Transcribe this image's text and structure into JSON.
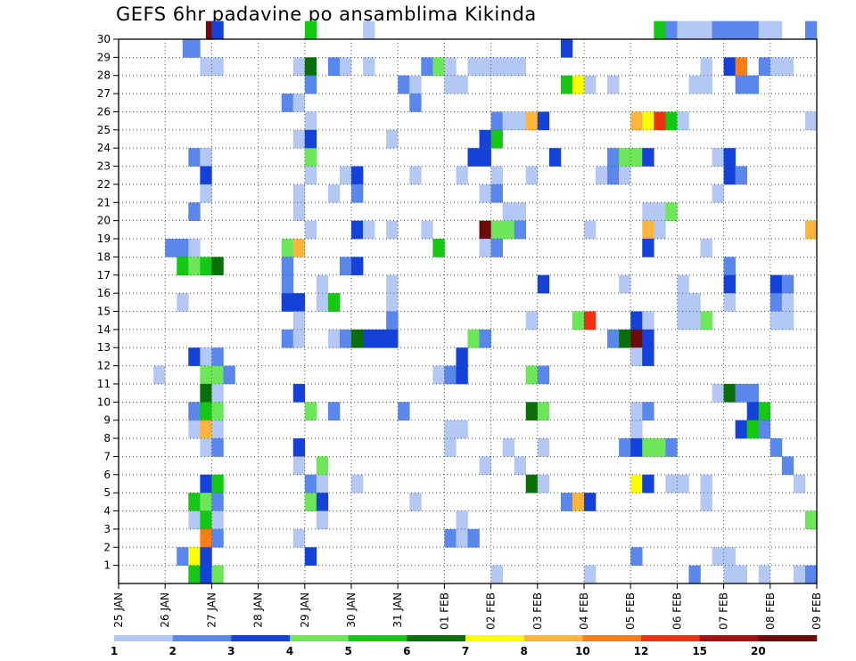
{
  "chart_data": {
    "type": "heatmap",
    "title": "GEFS 6hr padavine po ansamblima Kikinda",
    "xlabel": "",
    "ylabel": "",
    "x_ticks": [
      "25 JAN",
      "26 JAN",
      "27 JAN",
      "28 JAN",
      "29 JAN",
      "30 JAN",
      "31 JAN",
      "01 FEB",
      "02 FEB",
      "03 FEB",
      "04 FEB",
      "05 FEB",
      "06 FEB",
      "07 FEB",
      "08 FEB",
      "09 FEB"
    ],
    "x_range_days": [
      0,
      15
    ],
    "y_ticks": [
      1,
      2,
      3,
      4,
      5,
      6,
      7,
      8,
      9,
      10,
      11,
      12,
      13,
      14,
      15,
      16,
      17,
      18,
      19,
      20,
      21,
      22,
      23,
      24,
      25,
      26,
      27,
      28,
      29,
      30
    ],
    "y_range": [
      0,
      30
    ],
    "grid": true,
    "colorbar": {
      "labels": [
        "1",
        "2",
        "3",
        "4",
        "5",
        "6",
        "7",
        "8",
        "10",
        "12",
        "15",
        "20"
      ],
      "colors": [
        "#b4c8f5",
        "#5a87eb",
        "#1441d7",
        "#6ee65a",
        "#14c814",
        "#0a6e0a",
        "#ffff00",
        "#ffb43c",
        "#ff7d14",
        "#ee3214",
        "#a50f0f",
        "#6e0a0a"
      ]
    },
    "cells": [
      {
        "m": 30,
        "t": [
          [
            7.5,
            12
          ],
          [
            8,
            3
          ],
          [
            16,
            5
          ],
          [
            21,
            1
          ],
          [
            46,
            5
          ],
          [
            47,
            2
          ],
          [
            48,
            1
          ],
          [
            49,
            1
          ],
          [
            50,
            1
          ],
          [
            51,
            2
          ],
          [
            52,
            2
          ],
          [
            53,
            2
          ],
          [
            54,
            2
          ],
          [
            55,
            1
          ],
          [
            56,
            1
          ],
          [
            59,
            2
          ]
        ]
      },
      {
        "m": 29,
        "t": [
          [
            5.5,
            2
          ],
          [
            6,
            2
          ],
          [
            38,
            3
          ]
        ]
      },
      {
        "m": 28,
        "t": [
          [
            7,
            1
          ],
          [
            8,
            1
          ],
          [
            15,
            1
          ],
          [
            16,
            6
          ],
          [
            18,
            2
          ],
          [
            19,
            1
          ],
          [
            21,
            1
          ],
          [
            26,
            2
          ],
          [
            27,
            4
          ],
          [
            28,
            1
          ],
          [
            30,
            1
          ],
          [
            31,
            1
          ],
          [
            32,
            1
          ],
          [
            33,
            1
          ],
          [
            34,
            1
          ],
          [
            50,
            1
          ],
          [
            52,
            3
          ],
          [
            53,
            9
          ],
          [
            55,
            2
          ],
          [
            56,
            1
          ],
          [
            57,
            1
          ]
        ]
      },
      {
        "m": 27,
        "t": [
          [
            16,
            2
          ],
          [
            24,
            2
          ],
          [
            25,
            1
          ],
          [
            28,
            1
          ],
          [
            29,
            1
          ],
          [
            38,
            5
          ],
          [
            39,
            7
          ],
          [
            40,
            1
          ],
          [
            42,
            1
          ],
          [
            49,
            1
          ],
          [
            50,
            1
          ],
          [
            53,
            2
          ],
          [
            54,
            2
          ]
        ]
      },
      {
        "m": 26,
        "t": [
          [
            14,
            2
          ],
          [
            15,
            1
          ],
          [
            25,
            2
          ]
        ]
      },
      {
        "m": 25,
        "t": [
          [
            16,
            1
          ],
          [
            32,
            2
          ],
          [
            33,
            1
          ],
          [
            34,
            1
          ],
          [
            35,
            8
          ],
          [
            36,
            3
          ],
          [
            44,
            8
          ],
          [
            45,
            7
          ],
          [
            46,
            10
          ],
          [
            47,
            5
          ],
          [
            48,
            1
          ],
          [
            59,
            1
          ]
        ]
      },
      {
        "m": 24,
        "t": [
          [
            15,
            1
          ],
          [
            16,
            3
          ],
          [
            23,
            1
          ],
          [
            31,
            3
          ],
          [
            32,
            5
          ]
        ]
      },
      {
        "m": 23,
        "t": [
          [
            6,
            2
          ],
          [
            7,
            1
          ],
          [
            16,
            4
          ],
          [
            30,
            3
          ],
          [
            31,
            3
          ],
          [
            37,
            3
          ],
          [
            42,
            2
          ],
          [
            43,
            4
          ],
          [
            44,
            4
          ],
          [
            45,
            3
          ],
          [
            51,
            1
          ],
          [
            52,
            3
          ]
        ]
      },
      {
        "m": 22,
        "t": [
          [
            7,
            3
          ],
          [
            16,
            1
          ],
          [
            19,
            1
          ],
          [
            20,
            3
          ],
          [
            25,
            1
          ],
          [
            29,
            1
          ],
          [
            32,
            1
          ],
          [
            35,
            1
          ],
          [
            41,
            1
          ],
          [
            42,
            2
          ],
          [
            43,
            1
          ],
          [
            52,
            3
          ],
          [
            53,
            2
          ]
        ]
      },
      {
        "m": 21,
        "t": [
          [
            7,
            1
          ],
          [
            15,
            1
          ],
          [
            18,
            1
          ],
          [
            20,
            2
          ],
          [
            31,
            1
          ],
          [
            32,
            2
          ],
          [
            51,
            1
          ]
        ]
      },
      {
        "m": 20,
        "t": [
          [
            6,
            2
          ],
          [
            15,
            1
          ],
          [
            33,
            1
          ],
          [
            34,
            1
          ],
          [
            45,
            1
          ],
          [
            46,
            1
          ],
          [
            47,
            4
          ]
        ]
      },
      {
        "m": 19,
        "t": [
          [
            16,
            1
          ],
          [
            20,
            3
          ],
          [
            21,
            1
          ],
          [
            23,
            1
          ],
          [
            26,
            1
          ],
          [
            31,
            12
          ],
          [
            32,
            4
          ],
          [
            33,
            4
          ],
          [
            34,
            2
          ],
          [
            40,
            1
          ],
          [
            45,
            8
          ],
          [
            46,
            1
          ],
          [
            59,
            8
          ]
        ]
      },
      {
        "m": 18,
        "t": [
          [
            4,
            2
          ],
          [
            5,
            2
          ],
          [
            6,
            1
          ],
          [
            14,
            4
          ],
          [
            15,
            8
          ],
          [
            27,
            5
          ],
          [
            31,
            1
          ],
          [
            32,
            2
          ],
          [
            45,
            3
          ],
          [
            50,
            1
          ]
        ]
      },
      {
        "m": 17,
        "t": [
          [
            5,
            5
          ],
          [
            6,
            4
          ],
          [
            7,
            5
          ],
          [
            8,
            6
          ],
          [
            14,
            2
          ],
          [
            19,
            2
          ],
          [
            20,
            3
          ],
          [
            52,
            2
          ]
        ]
      },
      {
        "m": 16,
        "t": [
          [
            14,
            2
          ],
          [
            17,
            1
          ],
          [
            23,
            1
          ],
          [
            36,
            3
          ],
          [
            43,
            1
          ],
          [
            48,
            1
          ],
          [
            52,
            3
          ],
          [
            56,
            3
          ],
          [
            57,
            2
          ]
        ]
      },
      {
        "m": 15,
        "t": [
          [
            5,
            1
          ],
          [
            14,
            3
          ],
          [
            15,
            3
          ],
          [
            17,
            1
          ],
          [
            18,
            5
          ],
          [
            23,
            1
          ],
          [
            48,
            1
          ],
          [
            49,
            1
          ],
          [
            52,
            1
          ],
          [
            56,
            2
          ],
          [
            57,
            1
          ]
        ]
      },
      {
        "m": 14,
        "t": [
          [
            15,
            1
          ],
          [
            23,
            2
          ],
          [
            35,
            1
          ],
          [
            39,
            4
          ],
          [
            40,
            10
          ],
          [
            44,
            3
          ],
          [
            45,
            1
          ],
          [
            48,
            1
          ],
          [
            49,
            1
          ],
          [
            50,
            4
          ],
          [
            56,
            1
          ],
          [
            57,
            1
          ]
        ]
      },
      {
        "m": 13,
        "t": [
          [
            14,
            2
          ],
          [
            15,
            1
          ],
          [
            18,
            1
          ],
          [
            19,
            2
          ],
          [
            20,
            6
          ],
          [
            21,
            3
          ],
          [
            22,
            3
          ],
          [
            23,
            3
          ],
          [
            30,
            4
          ],
          [
            31,
            2
          ],
          [
            42,
            2
          ],
          [
            43,
            6
          ],
          [
            44,
            12
          ],
          [
            45,
            3
          ]
        ]
      },
      {
        "m": 12,
        "t": [
          [
            6,
            3
          ],
          [
            7,
            1
          ],
          [
            8,
            2
          ],
          [
            29,
            3
          ],
          [
            44,
            1
          ],
          [
            45,
            3
          ]
        ]
      },
      {
        "m": 11,
        "t": [
          [
            3,
            1
          ],
          [
            7,
            4
          ],
          [
            8,
            4
          ],
          [
            9,
            2
          ],
          [
            27,
            1
          ],
          [
            28,
            2
          ],
          [
            29,
            3
          ],
          [
            35,
            4
          ],
          [
            36,
            2
          ]
        ]
      },
      {
        "m": 10,
        "t": [
          [
            7,
            6
          ],
          [
            8,
            1
          ],
          [
            15,
            3
          ],
          [
            51,
            1
          ],
          [
            52,
            6
          ],
          [
            53,
            2
          ],
          [
            54,
            2
          ]
        ]
      },
      {
        "m": 9,
        "t": [
          [
            6,
            2
          ],
          [
            7,
            5
          ],
          [
            8,
            4
          ],
          [
            16,
            4
          ],
          [
            18,
            2
          ],
          [
            24,
            2
          ],
          [
            35,
            6
          ],
          [
            36,
            4
          ],
          [
            44,
            1
          ],
          [
            45,
            2
          ],
          [
            54,
            3
          ],
          [
            55,
            5
          ]
        ]
      },
      {
        "m": 8,
        "t": [
          [
            6,
            1
          ],
          [
            7,
            8
          ],
          [
            8,
            1
          ],
          [
            28,
            1
          ],
          [
            29,
            1
          ],
          [
            44,
            1
          ],
          [
            53,
            3
          ],
          [
            54,
            5
          ],
          [
            55,
            2
          ]
        ]
      },
      {
        "m": 7,
        "t": [
          [
            7,
            1
          ],
          [
            8,
            2
          ],
          [
            15,
            3
          ],
          [
            28,
            1
          ],
          [
            33,
            1
          ],
          [
            36,
            1
          ],
          [
            43,
            2
          ],
          [
            44,
            3
          ],
          [
            45,
            4
          ],
          [
            46,
            4
          ],
          [
            47,
            2
          ],
          [
            56,
            2
          ]
        ]
      },
      {
        "m": 6,
        "t": [
          [
            15,
            1
          ],
          [
            17,
            4
          ],
          [
            31,
            1
          ],
          [
            34,
            1
          ],
          [
            57,
            2
          ]
        ]
      },
      {
        "m": 5,
        "t": [
          [
            7,
            3
          ],
          [
            8,
            5
          ],
          [
            16,
            2
          ],
          [
            17,
            1
          ],
          [
            20,
            1
          ],
          [
            35,
            6
          ],
          [
            36,
            1
          ],
          [
            44,
            7
          ],
          [
            45,
            3
          ],
          [
            47,
            1
          ],
          [
            48,
            1
          ],
          [
            50,
            1
          ],
          [
            58,
            1
          ]
        ]
      },
      {
        "m": 4,
        "t": [
          [
            6,
            5
          ],
          [
            7,
            4
          ],
          [
            8,
            2
          ],
          [
            16,
            4
          ],
          [
            17,
            3
          ],
          [
            25,
            1
          ],
          [
            38,
            2
          ],
          [
            39,
            8
          ],
          [
            40,
            3
          ],
          [
            50,
            1
          ]
        ]
      },
      {
        "m": 3,
        "t": [
          [
            6,
            1
          ],
          [
            7,
            5
          ],
          [
            8,
            1
          ],
          [
            17,
            1
          ],
          [
            29,
            1
          ],
          [
            59,
            4
          ]
        ]
      },
      {
        "m": 2,
        "t": [
          [
            7,
            9
          ],
          [
            8,
            2
          ],
          [
            15,
            1
          ],
          [
            28,
            2
          ],
          [
            29,
            1
          ],
          [
            30,
            2
          ]
        ]
      },
      {
        "m": 1,
        "t": [
          [
            5,
            2
          ],
          [
            6,
            7
          ],
          [
            7,
            3
          ],
          [
            16,
            3
          ],
          [
            44,
            2
          ],
          [
            51,
            1
          ],
          [
            52,
            1
          ]
        ]
      },
      {
        "m": 0,
        "t": [
          [
            6,
            5
          ],
          [
            7,
            3
          ],
          [
            8,
            4
          ],
          [
            32,
            1
          ],
          [
            40,
            1
          ],
          [
            49,
            2
          ],
          [
            52,
            1
          ],
          [
            53,
            1
          ],
          [
            55,
            1
          ],
          [
            58,
            1
          ],
          [
            59,
            2
          ]
        ]
      }
    ]
  }
}
